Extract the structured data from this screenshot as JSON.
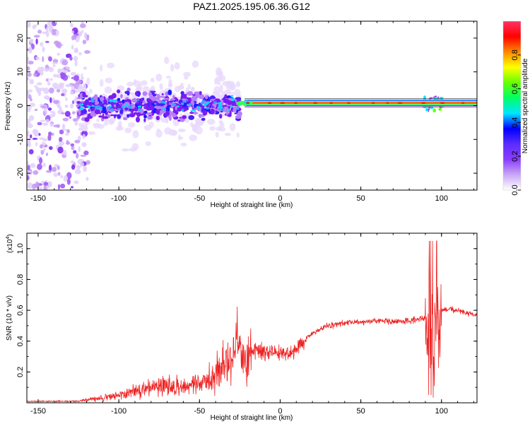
{
  "page_title": "PAZ1.2025.195.06.36.G12",
  "chart_data": [
    {
      "type": "heatmap",
      "title": "PAZ1.2025.195.06.36.G12",
      "xlabel": "Height of straight line (km)",
      "ylabel": "Frequency (Hz)",
      "xlim": [
        -157,
        122
      ],
      "ylim": [
        -25,
        25
      ],
      "x_ticks": [
        -150,
        -100,
        -50,
        0,
        50,
        100
      ],
      "y_ticks": [
        -20,
        -10,
        0,
        10,
        20
      ],
      "colorbar": {
        "label": "Normalized spectral amplitude",
        "range": [
          0,
          1
        ],
        "ticks": [
          "0.0",
          "0.2",
          "0.4",
          "0.6",
          "0.8"
        ],
        "colors": [
          "#ffffff",
          "#c9a8f5",
          "#8a3cff",
          "#5b2dff",
          "#0000ff",
          "#00e5ff",
          "#00ff66",
          "#66ff00",
          "#ffff00",
          "#ff8800",
          "#ff0000",
          "#ff3366"
        ]
      },
      "features": {
        "noise_region_km": [
          -157,
          -125
        ],
        "scintillation_region_km": [
          -125,
          -25
        ],
        "stable_tone_region_km": [
          -22,
          122
        ],
        "stable_tone_frequency_hz": 0.8,
        "disturbance_near_km": 95
      }
    },
    {
      "type": "line",
      "title": "",
      "xlabel": "Height of straight line (km)",
      "ylabel": "SNR (10 * v/v)",
      "y_scale_note": "(x10",
      "y_scale_exponent": "4",
      "xlim": [
        -157,
        122
      ],
      "ylim": [
        0,
        1.1
      ],
      "x_ticks": [
        -150,
        -100,
        -50,
        0,
        50,
        100
      ],
      "y_ticks": [
        0.2,
        0.4,
        0.6,
        0.8,
        1.0
      ],
      "line_color": "#ee2222",
      "series": [
        {
          "x": [
            -157,
            -140,
            -125,
            -120,
            -110,
            -100,
            -90,
            -80,
            -70,
            -60,
            -50,
            -40,
            -35,
            -30,
            -27,
            -25,
            -22,
            -20,
            -15,
            -10,
            -5,
            0,
            5,
            10,
            15,
            20,
            25,
            30,
            40,
            50,
            60,
            70,
            80,
            90,
            93,
            95,
            97,
            100,
            105,
            110,
            115,
            122
          ],
          "values": [
            0.01,
            0.01,
            0.01,
            0.02,
            0.03,
            0.05,
            0.08,
            0.1,
            0.11,
            0.1,
            0.12,
            0.18,
            0.25,
            0.3,
            0.38,
            0.35,
            0.28,
            0.3,
            0.35,
            0.33,
            0.32,
            0.33,
            0.31,
            0.36,
            0.4,
            0.45,
            0.48,
            0.5,
            0.52,
            0.52,
            0.53,
            0.53,
            0.53,
            0.55,
            0.5,
            0.4,
            0.5,
            0.6,
            0.61,
            0.6,
            0.58,
            0.57
          ]
        }
      ]
    }
  ]
}
